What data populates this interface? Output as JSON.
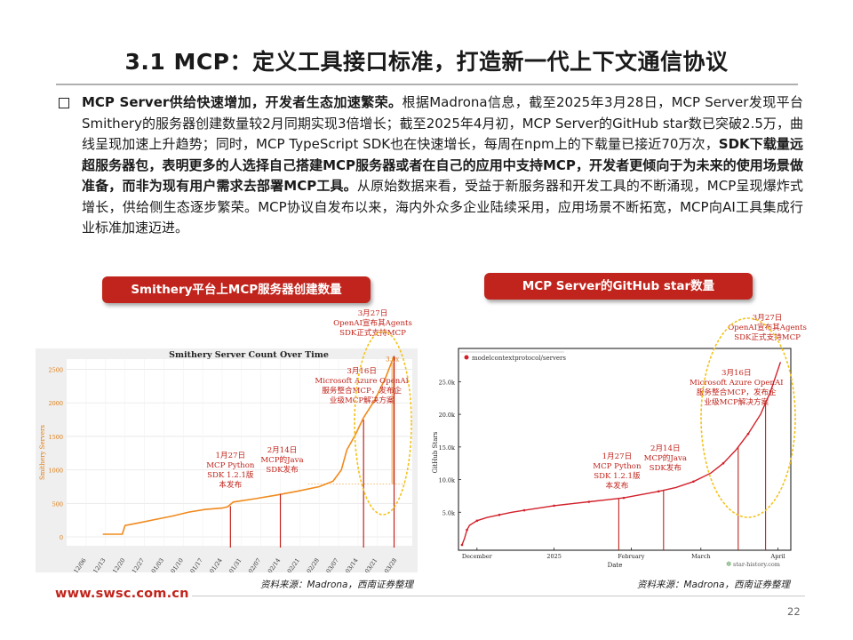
{
  "page": {
    "title": "3.1 MCP：定义工具接口标准，打造新一代上下文通信协议",
    "paragraph": {
      "bold_lead": "MCP Server供给快速增加，开发者生态加速繁荣。",
      "text_1": "根据Madrona信息，截至2025年3月28日，MCP Server发现平台Smithery的服务器创建数量较2月同期实现3倍增长；截至2025年4月初，MCP Server的GitHub star数已突破2.5万，曲线呈现加速上升趋势；同时，MCP TypeScript SDK也在快速增长，每周在npm上的下载量已接近70万次，",
      "bold_mid": "SDK下载量远超服务器包，表明更多的人选择自己搭建MCP服务器或者在自己的应用中支持MCP，开发者更倾向于为未来的使用场景做准备，而非为现有用户需求去部署MCP工具。",
      "text_2": "从原始数据来看，受益于新服务器和开发工具的不断涌现，MCP呈现爆炸式增长，供给侧生态逐步繁荣。MCP协议自发布以来，海内外众多企业陆续采用，应用场景不断拓宽，MCP向AI工具集成行业标准加速迈进。"
    },
    "left_pill": "Smithery平台上MCP服务器创建数量",
    "right_pill": "MCP Server的GitHub star数量",
    "left_source": "资料来源：Madrona，西南证券整理",
    "right_source": "资料来源：Madrona，西南证券整理",
    "footer_url": "www.swsc.com.cn",
    "page_number": "22"
  },
  "colors": {
    "accent": "#c0241c",
    "smithery_line": "#f08a1c",
    "annotation": "#c0241c",
    "star_line": "#d2202a"
  },
  "chart_data": [
    {
      "type": "line",
      "title": "Smithery Server Count Over Time",
      "ylabel": "Smithery Servers",
      "xlabel": "",
      "ylim": [
        0,
        2600
      ],
      "yticks": [
        0,
        500,
        1000,
        1500,
        2000,
        2500
      ],
      "x_tick_labels": [
        "12/06",
        "12/13",
        "12/20",
        "12/27",
        "01/03",
        "01/10",
        "01/17",
        "01/24",
        "01/31",
        "02/07",
        "02/14",
        "02/21",
        "02/28",
        "03/07",
        "03/14",
        "03/21",
        "03/28"
      ],
      "series": [
        {
          "x": [
            "12/12",
            "12/16",
            "12/19",
            "12/20",
            "12/25",
            "12/31",
            "01/06",
            "01/12",
            "01/18",
            "01/24",
            "01/26",
            "01/28",
            "02/05",
            "02/12",
            "02/20",
            "02/28",
            "03/05",
            "03/08",
            "03/10",
            "03/13",
            "03/16",
            "03/20",
            "03/24",
            "03/27"
          ],
          "values": [
            40,
            40,
            40,
            170,
            210,
            260,
            310,
            370,
            410,
            430,
            450,
            520,
            570,
            620,
            680,
            750,
            830,
            1000,
            1300,
            1520,
            1780,
            2040,
            2380,
            2700
          ]
        }
      ],
      "annotations": [
        {
          "date": "01/27",
          "text": "1月27日\nMCP Python\nSDK 1.2.1版\n本发布"
        },
        {
          "date": "02/14",
          "text": "2月14日\nMCP的Java\nSDK发布"
        },
        {
          "date": "03/16",
          "text": "3月16日\nMicrosoft Azure OpenAI\n服务整合MCP，发布企\n业级MCP解决方案"
        },
        {
          "date": "03/27",
          "text": "3月27日\nOpenAI宣布其Agents\nSDK正式支持MCP"
        }
      ],
      "end_label": "3.0x"
    },
    {
      "type": "line",
      "title": "",
      "legend": "modelcontextprotocol/servers",
      "ylabel": "GitHub Stars",
      "xlabel": "Date",
      "ylim": [
        0,
        29000
      ],
      "yticks": [
        5000,
        10000,
        15000,
        20000,
        25000
      ],
      "ytick_labels": [
        "5.0k",
        "10.0k",
        "15.0k",
        "20.0k",
        "25.0k"
      ],
      "x_tick_labels": [
        "December",
        "2025",
        "February",
        "March",
        "April"
      ],
      "watermark": "star-history.com",
      "series": [
        {
          "name": "modelcontextprotocol/servers",
          "x": [
            "11/25",
            "11/26",
            "11/27",
            "11/28",
            "12/01",
            "12/05",
            "12/10",
            "12/15",
            "12/20",
            "12/25",
            "01/01",
            "01/08",
            "01/15",
            "01/22",
            "01/29",
            "02/05",
            "02/12",
            "02/19",
            "02/26",
            "03/05",
            "03/10",
            "03/15",
            "03/20",
            "03/25",
            "03/29",
            "04/02"
          ],
          "values": [
            0,
            1000,
            2300,
            3000,
            3700,
            4200,
            4600,
            5000,
            5300,
            5600,
            6000,
            6300,
            6600,
            6900,
            7200,
            7700,
            8200,
            8800,
            9700,
            11000,
            12500,
            14500,
            17000,
            20000,
            23500,
            28000
          ]
        }
      ],
      "annotations": [
        {
          "date": "01/27",
          "text": "1月27日\nMCP Python\nSDK 1.2.1版\n本发布"
        },
        {
          "date": "02/14",
          "text": "2月14日\nMCP的Java\nSDK发布"
        },
        {
          "date": "03/16",
          "text": "3月16日\nMicrosoft Azure OpenAI\n服务整合MCP，发布企\n业级MCP解决方案"
        },
        {
          "date": "03/27",
          "text": "3月27日\nOpenAI宣布其Agents\nSDK正式支持MCP"
        }
      ]
    }
  ]
}
